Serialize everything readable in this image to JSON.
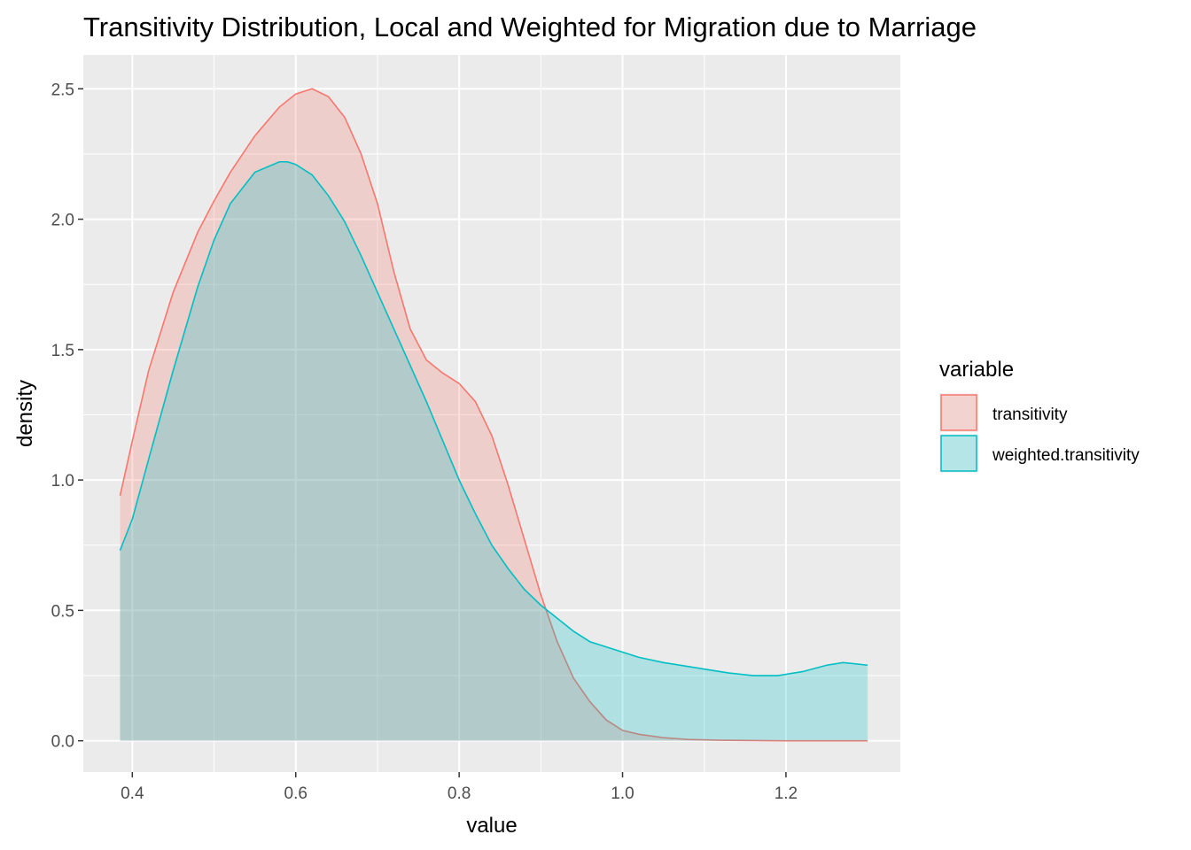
{
  "chart_data": {
    "type": "area",
    "title": "Transitivity Distribution, Local and Weighted for Migration due to Marriage",
    "xlabel": "value",
    "ylabel": "density",
    "xlim": [
      0.34,
      1.34
    ],
    "ylim": [
      -0.12,
      2.63
    ],
    "x_ticks": [
      0.4,
      0.6,
      0.8,
      1.0,
      1.2
    ],
    "x_tick_labels": [
      "0.4",
      "0.6",
      "0.8",
      "1.0",
      "1.2"
    ],
    "y_ticks": [
      0.0,
      0.5,
      1.0,
      1.5,
      2.0,
      2.5
    ],
    "y_tick_labels": [
      "0.0",
      "0.5",
      "1.0",
      "1.5",
      "2.0",
      "2.5"
    ],
    "grid": true,
    "legend": {
      "title": "variable",
      "position": "right"
    },
    "series": [
      {
        "name": "transitivity",
        "color": "#F8766D",
        "x": [
          0.385,
          0.4,
          0.42,
          0.45,
          0.48,
          0.5,
          0.52,
          0.55,
          0.58,
          0.6,
          0.62,
          0.64,
          0.66,
          0.68,
          0.7,
          0.72,
          0.74,
          0.76,
          0.78,
          0.8,
          0.82,
          0.84,
          0.86,
          0.88,
          0.9,
          0.92,
          0.94,
          0.96,
          0.98,
          1.0,
          1.02,
          1.05,
          1.08,
          1.12,
          1.15,
          1.2,
          1.25,
          1.3
        ],
        "y": [
          0.94,
          1.15,
          1.42,
          1.72,
          1.95,
          2.07,
          2.18,
          2.32,
          2.43,
          2.48,
          2.5,
          2.47,
          2.39,
          2.25,
          2.06,
          1.8,
          1.58,
          1.46,
          1.41,
          1.37,
          1.3,
          1.17,
          0.98,
          0.77,
          0.56,
          0.38,
          0.24,
          0.15,
          0.08,
          0.04,
          0.025,
          0.012,
          0.005,
          0.002,
          0.001,
          0.0,
          0.0,
          0.0
        ]
      },
      {
        "name": "weighted.transitivity",
        "color": "#00BFC4",
        "x": [
          0.385,
          0.4,
          0.42,
          0.45,
          0.48,
          0.5,
          0.52,
          0.55,
          0.58,
          0.59,
          0.6,
          0.62,
          0.64,
          0.66,
          0.68,
          0.7,
          0.72,
          0.74,
          0.76,
          0.78,
          0.8,
          0.82,
          0.84,
          0.86,
          0.88,
          0.9,
          0.92,
          0.94,
          0.96,
          0.98,
          1.0,
          1.02,
          1.05,
          1.08,
          1.1,
          1.13,
          1.16,
          1.19,
          1.22,
          1.25,
          1.27,
          1.3
        ],
        "y": [
          0.73,
          0.85,
          1.08,
          1.42,
          1.74,
          1.92,
          2.06,
          2.18,
          2.22,
          2.22,
          2.21,
          2.17,
          2.09,
          1.99,
          1.86,
          1.72,
          1.58,
          1.44,
          1.3,
          1.15,
          1.0,
          0.87,
          0.75,
          0.66,
          0.58,
          0.52,
          0.47,
          0.42,
          0.38,
          0.36,
          0.34,
          0.32,
          0.3,
          0.285,
          0.275,
          0.26,
          0.25,
          0.25,
          0.265,
          0.29,
          0.3,
          0.29
        ]
      }
    ]
  }
}
